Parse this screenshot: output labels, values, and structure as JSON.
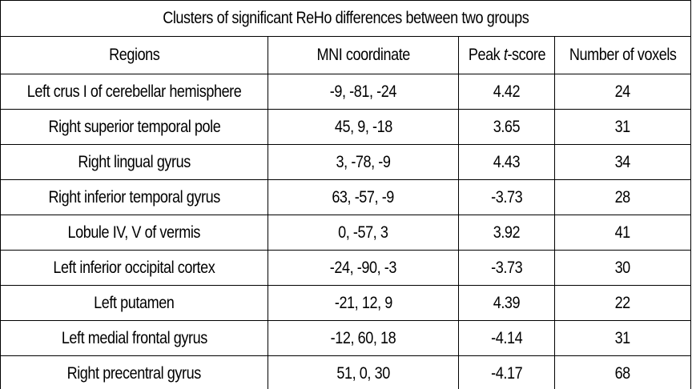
{
  "table": {
    "caption": "Clusters of significant ReHo differences between two groups",
    "headers": {
      "region": "Regions",
      "mni": "MNI coordinate",
      "peak_prefix": "Peak ",
      "peak_italic": "t",
      "peak_suffix": "-score",
      "voxels": "Number of voxels"
    },
    "rows": [
      {
        "region": "Left crus I of cerebellar hemisphere",
        "mni": "-9, -81, -24",
        "peak": "4.42",
        "voxels": "24"
      },
      {
        "region": "Right superior temporal pole",
        "mni": "45, 9, -18",
        "peak": "3.65",
        "voxels": "31"
      },
      {
        "region": "Right lingual gyrus",
        "mni": "3, -78, -9",
        "peak": "4.43",
        "voxels": "34"
      },
      {
        "region": "Right inferior temporal gyrus",
        "mni": "63, -57, -9",
        "peak": "-3.73",
        "voxels": "28"
      },
      {
        "region": "Lobule IV, V of vermis",
        "mni": "0, -57, 3",
        "peak": "3.92",
        "voxels": "41"
      },
      {
        "region": "Left inferior occipital cortex",
        "mni": "-24, -90, -3",
        "peak": "-3.73",
        "voxels": "30"
      },
      {
        "region": "Left putamen",
        "mni": "-21, 12, 9",
        "peak": "4.39",
        "voxels": "22"
      },
      {
        "region": "Left medial frontal gyrus",
        "mni": "-12, 60, 18",
        "peak": "-4.14",
        "voxels": "31"
      },
      {
        "region": "Right precentral gyrus",
        "mni": "51, 0, 30",
        "peak": "-4.17",
        "voxels": "68"
      }
    ]
  }
}
